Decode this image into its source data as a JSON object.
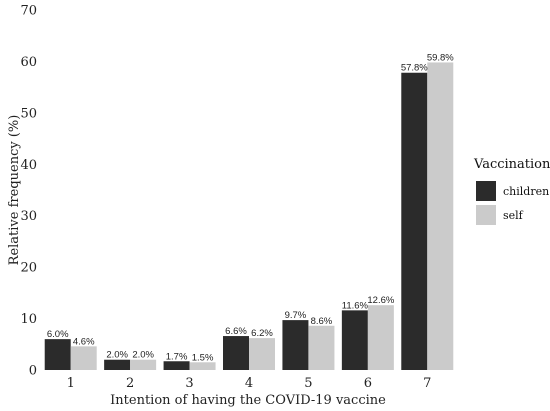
{
  "chart_data": {
    "type": "bar",
    "title": "",
    "xlabel": "Intention of having the COVID-19 vaccine",
    "ylabel": "Relative frequency (%)",
    "ylim": [
      0,
      70
    ],
    "yticks": [
      0,
      10,
      20,
      30,
      40,
      50,
      60,
      70
    ],
    "categories": [
      "1",
      "2",
      "3",
      "4",
      "5",
      "6",
      "7"
    ],
    "grid": false,
    "legend": {
      "title": "Vaccination",
      "position": "right"
    },
    "series": [
      {
        "name": "children",
        "color": "#2b2b2b",
        "values": [
          6.0,
          2.0,
          1.7,
          6.6,
          9.7,
          11.6,
          57.8
        ],
        "labels": [
          "6.0%",
          "2.0%",
          "1.7%",
          "6.6%",
          "9.7%",
          "11.6%",
          "57.8%"
        ]
      },
      {
        "name": "self",
        "color": "#cbcbcb",
        "values": [
          4.6,
          2.0,
          1.5,
          6.2,
          8.6,
          12.6,
          59.8
        ],
        "labels": [
          "4.6%",
          "2.0%",
          "1.5%",
          "6.2%",
          "8.6%",
          "12.6%",
          "59.8%"
        ]
      }
    ]
  }
}
